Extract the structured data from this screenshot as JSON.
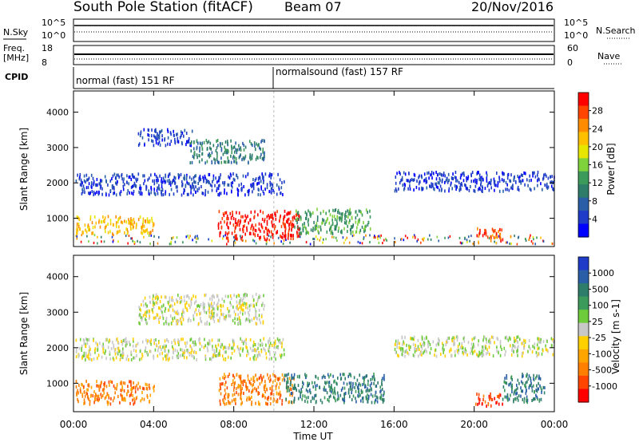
{
  "header": {
    "title": "South Pole Station (fitACF)",
    "beam": "Beam 07",
    "date": "20/Nov/2016"
  },
  "top_panels": {
    "nsky_label": "N.Sky",
    "nsearch_label": "N.Search",
    "freq_label_1": "Freq.",
    "freq_label_2": "[MHz]",
    "nave_label": "Nave",
    "cpid_label": "CPID",
    "noise_ticks": [
      "10^5",
      "10^0"
    ],
    "freq_ticks": [
      "18",
      "8"
    ],
    "nave_ticks": [
      "60",
      "0"
    ],
    "cpid_segments": [
      {
        "label": "normal (fast) 151 RF",
        "start_hour": 0,
        "end_hour": 10
      },
      {
        "label": "normalsound (fast) 157 RF",
        "start_hour": 10,
        "end_hour": 24
      }
    ]
  },
  "chart_data": [
    {
      "type": "heatmap",
      "name": "power",
      "xlabel": "",
      "ylabel": "Slant Range [km]",
      "x_range_hours": [
        0,
        24
      ],
      "xlim_labels": [
        "00:00",
        "24:00"
      ],
      "ylim": [
        200,
        4600
      ],
      "y_ticks": [
        1000,
        2000,
        3000,
        4000
      ],
      "colorbar_label": "Power [dB]",
      "colorbar_ticks": [
        "28",
        "24",
        "20",
        "16",
        "12",
        "8",
        "4"
      ],
      "colorbar_colors": [
        "#ff0000",
        "#ff4500",
        "#ff8c00",
        "#ffc000",
        "#e6e600",
        "#7fd23c",
        "#3c9a5a",
        "#2e7d6a",
        "#2a5fa8",
        "#1e3cc8",
        "#0000ff"
      ],
      "regions": [
        {
          "t0": 0.1,
          "t1": 24,
          "r0": 300,
          "r1": 560,
          "level": "mixed"
        },
        {
          "t0": 0.1,
          "t1": 4.0,
          "r0": 600,
          "r1": 1100,
          "level": 3
        },
        {
          "t0": 7.2,
          "t1": 11.3,
          "r0": 450,
          "r1": 1250,
          "level": 0
        },
        {
          "t0": 11.0,
          "t1": 14.8,
          "r0": 600,
          "r1": 1300,
          "level": 6
        },
        {
          "t0": 20.0,
          "t1": 21.4,
          "r0": 400,
          "r1": 750,
          "level": 1
        },
        {
          "t0": 0.1,
          "t1": 10.5,
          "r0": 1700,
          "r1": 2300,
          "level": 9
        },
        {
          "t0": 3.2,
          "t1": 5.9,
          "r0": 3100,
          "r1": 3550,
          "level": 9
        },
        {
          "t0": 5.8,
          "t1": 9.5,
          "r0": 2600,
          "r1": 3250,
          "level": 7
        },
        {
          "t0": 16.0,
          "t1": 24.0,
          "r0": 1800,
          "r1": 2350,
          "level": 9
        }
      ]
    },
    {
      "type": "heatmap",
      "name": "velocity",
      "xlabel": "Time UT",
      "ylabel": "Slant Range [km]",
      "x_ticks": [
        "00:00",
        "04:00",
        "08:00",
        "12:00",
        "16:00",
        "20:00",
        "00:00"
      ],
      "x_range_hours": [
        0,
        24
      ],
      "ylim": [
        200,
        4600
      ],
      "y_ticks": [
        1000,
        2000,
        3000,
        4000
      ],
      "colorbar_label": "Velocity [m s-1]",
      "colorbar_ticks": [
        "1000",
        "500",
        "100",
        "25",
        "-25",
        "-100",
        "-500",
        "-1000"
      ],
      "colorbar_colors": [
        "#1e3cc8",
        "#2a5fa8",
        "#2e7d6a",
        "#3c9a5a",
        "#6ecb3c",
        "#c8c8c8",
        "#ffd000",
        "#ffa500",
        "#ff7f00",
        "#ff4500",
        "#ff0000"
      ],
      "regions": [
        {
          "t0": 0.1,
          "t1": 4.0,
          "r0": 450,
          "r1": 1100,
          "level": 8
        },
        {
          "t0": 7.2,
          "t1": 11.0,
          "r0": 450,
          "r1": 1300,
          "level": 8
        },
        {
          "t0": 10.5,
          "t1": 15.5,
          "r0": 500,
          "r1": 1300,
          "level": 2
        },
        {
          "t0": 20.0,
          "t1": 21.4,
          "r0": 400,
          "r1": 750,
          "level": 9
        },
        {
          "t0": 21.4,
          "t1": 23.5,
          "r0": 500,
          "r1": 1300,
          "level": 2
        },
        {
          "t0": 0.1,
          "t1": 10.5,
          "r0": 1700,
          "r1": 2300,
          "level": 5
        },
        {
          "t0": 3.2,
          "t1": 9.5,
          "r0": 2700,
          "r1": 3550,
          "level": 5
        },
        {
          "t0": 16.0,
          "t1": 24.0,
          "r0": 1800,
          "r1": 2350,
          "level": 5
        }
      ]
    }
  ]
}
